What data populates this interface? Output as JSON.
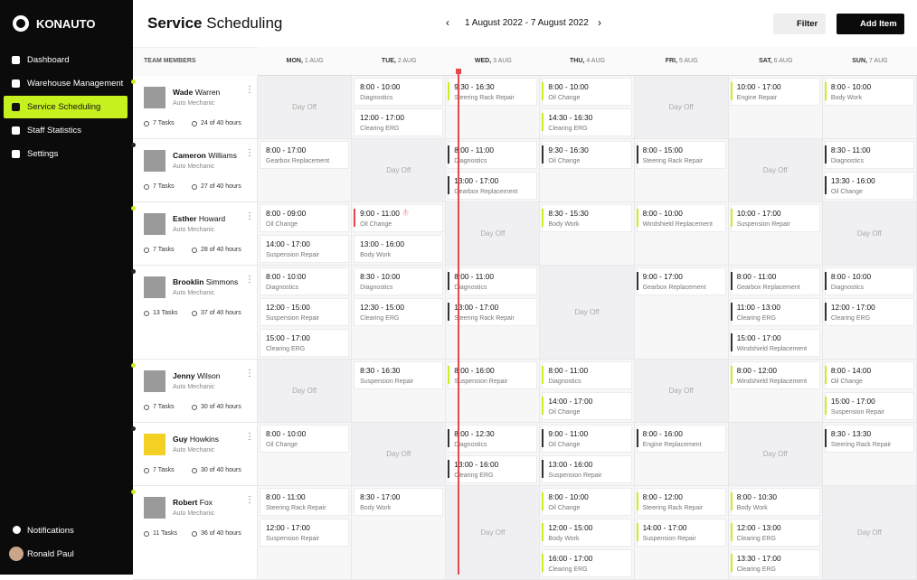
{
  "sidebar": {
    "brand": "KONAUTO",
    "nav": [
      {
        "label": "Dashboard"
      },
      {
        "label": "Warehouse Management"
      },
      {
        "label": "Service Scheduling",
        "active": true
      },
      {
        "label": "Staff Statistics"
      },
      {
        "label": "Settings"
      }
    ],
    "notifications": "Notifications",
    "user": "Ronald Paul"
  },
  "header": {
    "title_strong": "Service",
    "title_rest": "Scheduling",
    "date_range": "1 August 2022 - 7 August 2022",
    "filter": "Filter",
    "add_item": "Add Item"
  },
  "table": {
    "team_header": "TEAM MEMBERS",
    "day_off": "Day Off",
    "days": [
      {
        "day": "MON,",
        "date": "1 AUG"
      },
      {
        "day": "TUE,",
        "date": "2 AUG"
      },
      {
        "day": "WED,",
        "date": "3 AUG"
      },
      {
        "day": "THU,",
        "date": "4 AUG"
      },
      {
        "day": "FRI,",
        "date": "5 AUG"
      },
      {
        "day": "SAT,",
        "date": "6 AUG"
      },
      {
        "day": "SUN,",
        "date": "7 AUG"
      }
    ],
    "members": [
      {
        "first": "Wade",
        "last": "Warren",
        "role": "Auto Mechanic",
        "tasks": "7 Tasks",
        "hours": "24 of 40 hours",
        "status": "#c6f01e",
        "schedule": [
          null,
          [
            {
              "time": "8:00 - 10:00",
              "task": "Diagnostics"
            },
            {
              "time": "12:00 - 17:00",
              "task": "Clearing ERG"
            }
          ],
          [
            {
              "time": "9:30 - 16:30",
              "task": "Steering Rack Repair",
              "accent": "#c6f01e"
            }
          ],
          [
            {
              "time": "8:00 - 10:00",
              "task": "Oil Change",
              "accent": "#c6f01e"
            },
            {
              "time": "14:30 - 16:30",
              "task": "Clearing ERG",
              "accent": "#c6f01e"
            }
          ],
          null,
          [
            {
              "time": "10:00 - 17:00",
              "task": "Engine Repair",
              "accent": "#c6f01e"
            }
          ],
          [
            {
              "time": "8:00 - 10:00",
              "task": "Body Work",
              "accent": "#c6f01e"
            }
          ]
        ]
      },
      {
        "first": "Cameron",
        "last": "Williams",
        "role": "Auto Mechanic",
        "tasks": "7 Tasks",
        "hours": "27 of 40 hours",
        "status": "#222222",
        "schedule": [
          [
            {
              "time": "8:00 - 17:00",
              "task": "Gearbox Replacement"
            }
          ],
          null,
          [
            {
              "time": "8:00 - 11:00",
              "task": "Diagnostics",
              "accent": "#333333"
            },
            {
              "time": "13:00 - 17:00",
              "task": "Gearbox Replacement",
              "accent": "#333333"
            }
          ],
          [
            {
              "time": "9:30 - 16:30",
              "task": "Oil Change",
              "accent": "#333333"
            }
          ],
          [
            {
              "time": "8:00 - 15:00",
              "task": "Steering Rack Repair",
              "accent": "#333333"
            }
          ],
          null,
          [
            {
              "time": "8:30 - 11:00",
              "task": "Diagnostics",
              "accent": "#333333"
            },
            {
              "time": "13:30 - 16:00",
              "task": "Oil Change",
              "accent": "#333333"
            }
          ]
        ]
      },
      {
        "first": "Esther",
        "last": "Howard",
        "role": "Auto Mechanic",
        "tasks": "7 Tasks",
        "hours": "28 of 40 hours",
        "status": "#c6f01e",
        "schedule": [
          [
            {
              "time": "8:00 - 09:00",
              "task": "Oil Change"
            },
            {
              "time": "14:00 - 17:00",
              "task": "Suspension Repair"
            }
          ],
          [
            {
              "time": "9:00 - 11:00",
              "task": "Oil Change",
              "accent": "#e5484d",
              "alert": true
            },
            {
              "time": "13:00 - 16:00",
              "task": "Body Work"
            }
          ],
          null,
          [
            {
              "time": "8:30 - 15:30",
              "task": "Body Work",
              "accent": "#c6f01e"
            }
          ],
          [
            {
              "time": "8:00 - 10:00",
              "task": "Windshield Replacement",
              "accent": "#c6f01e"
            }
          ],
          [
            {
              "time": "10:00 - 17:00",
              "task": "Suspension Repair",
              "accent": "#c6f01e"
            }
          ],
          null
        ]
      },
      {
        "first": "Brooklin",
        "last": "Simmons",
        "role": "Auto Mechanic",
        "tasks": "13 Tasks",
        "hours": "37 of 40 hours",
        "status": "#222222",
        "schedule": [
          [
            {
              "time": "8:00 - 10:00",
              "task": "Diagnostics"
            },
            {
              "time": "12:00 - 15:00",
              "task": "Suspension Repair"
            },
            {
              "time": "15:00 - 17:00",
              "task": "Clearing ERG"
            }
          ],
          [
            {
              "time": "8:30 - 10:00",
              "task": "Diagnostics"
            },
            {
              "time": "12:30 - 15:00",
              "task": "Clearing ERG"
            }
          ],
          [
            {
              "time": "8:00 - 11:00",
              "task": "Diagnostics",
              "accent": "#333333"
            },
            {
              "time": "13:00 - 17:00",
              "task": "Steering Rack Repair",
              "accent": "#333333"
            }
          ],
          null,
          [
            {
              "time": "9:00 - 17:00",
              "task": "Gearbox Replacement",
              "accent": "#333333"
            }
          ],
          [
            {
              "time": "8:00 - 11:00",
              "task": "Gearbox Replacement",
              "accent": "#333333"
            },
            {
              "time": "11:00 - 13:00",
              "task": "Clearing ERG",
              "accent": "#333333"
            },
            {
              "time": "15:00 - 17:00",
              "task": "Windshield Replacement",
              "accent": "#333333"
            }
          ],
          [
            {
              "time": "8:00 - 10:00",
              "task": "Diagnostics",
              "accent": "#333333"
            },
            {
              "time": "12:00 - 17:00",
              "task": "Clearing ERG",
              "accent": "#333333"
            }
          ]
        ]
      },
      {
        "first": "Jenny",
        "last": "Wilson",
        "role": "Auto Mechanic",
        "tasks": "7 Tasks",
        "hours": "30 of 40 hours",
        "status": "#c6f01e",
        "schedule": [
          null,
          [
            {
              "time": "8:30 - 16:30",
              "task": "Suspension Repair"
            }
          ],
          [
            {
              "time": "8:00 - 16:00",
              "task": "Suspension Repair",
              "accent": "#c6f01e"
            }
          ],
          [
            {
              "time": "8:00 - 11:00",
              "task": "Diagnostics",
              "accent": "#c6f01e"
            },
            {
              "time": "14:00 - 17:00",
              "task": "Oil Change",
              "accent": "#c6f01e"
            }
          ],
          null,
          [
            {
              "time": "8:00 - 12:00",
              "task": "Windshield Replacement",
              "accent": "#c6f01e"
            }
          ],
          [
            {
              "time": "8:00 - 14:00",
              "task": "Oil Change",
              "accent": "#c6f01e"
            },
            {
              "time": "15:00 - 17:00",
              "task": "Suspension Repair",
              "accent": "#c6f01e"
            }
          ]
        ]
      },
      {
        "first": "Guy",
        "last": "Howkins",
        "role": "Auto Mechanic",
        "tasks": "7 Tasks",
        "hours": "30 of 40 hours",
        "status": "#222222",
        "schedule": [
          [
            {
              "time": "8:00 - 10:00",
              "task": "Oil Change"
            }
          ],
          null,
          [
            {
              "time": "8:00 - 12:30",
              "task": "Diagnostics",
              "accent": "#333333"
            },
            {
              "time": "13:00 - 16:00",
              "task": "Clearing ERG",
              "accent": "#333333"
            }
          ],
          [
            {
              "time": "9:00 - 11:00",
              "task": "Oil Change",
              "accent": "#333333"
            },
            {
              "time": "13:00 - 16:00",
              "task": "Suspension Repair",
              "accent": "#333333"
            }
          ],
          [
            {
              "time": "8:00 - 16:00",
              "task": "Engine Replacement",
              "accent": "#333333"
            }
          ],
          null,
          [
            {
              "time": "8:30 - 13:30",
              "task": "Steering Rack Repair",
              "accent": "#333333"
            }
          ]
        ]
      },
      {
        "first": "Robert",
        "last": "Fox",
        "role": "Auto Mechanic",
        "tasks": "11 Tasks",
        "hours": "36 of 40 hours",
        "status": "#c6f01e",
        "schedule": [
          [
            {
              "time": "8:00 - 11:00",
              "task": "Steering Rack Repair"
            },
            {
              "time": "12:00 - 17:00",
              "task": "Suspension Repair"
            }
          ],
          [
            {
              "time": "8:30 - 17:00",
              "task": "Body Work"
            }
          ],
          null,
          [
            {
              "time": "8:00 - 10:00",
              "task": "Oil Change",
              "accent": "#c6f01e"
            },
            {
              "time": "12:00 - 15:00",
              "task": "Body Work",
              "accent": "#c6f01e"
            },
            {
              "time": "16:00 - 17:00",
              "task": "Clearing ERG",
              "accent": "#c6f01e"
            }
          ],
          [
            {
              "time": "8:00 - 12:00",
              "task": "Steering Rack Repair",
              "accent": "#c6f01e"
            },
            {
              "time": "14:00 - 17:00",
              "task": "Suspension Repair",
              "accent": "#c6f01e"
            }
          ],
          [
            {
              "time": "8:00 - 10:30",
              "task": "Body Work",
              "accent": "#c6f01e"
            },
            {
              "time": "12:00 - 13:00",
              "task": "Clearing ERG",
              "accent": "#c6f01e"
            },
            {
              "time": "13:30 - 17:00",
              "task": "Clearing ERG",
              "accent": "#c6f01e"
            }
          ],
          null
        ]
      }
    ]
  }
}
